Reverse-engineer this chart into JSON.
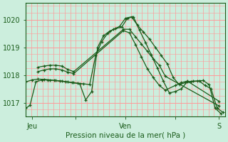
{
  "title": "",
  "xlabel": "Pression niveau de la mer( hPa )",
  "ylabel": "",
  "bg_color": "#cceedd",
  "grid_color_v": "#ff9999",
  "grid_color_h": "#ff9999",
  "line_color": "#1a5c1a",
  "ylim": [
    1016.5,
    1020.6
  ],
  "yticks": [
    1017,
    1018,
    1019,
    1020
  ],
  "xtick_labels": [
    "Jeu",
    "",
    "Ven",
    "",
    "S"
  ],
  "xtick_pos": [
    0.03,
    0.25,
    0.5,
    0.75,
    0.97
  ],
  "num_vlines": 36,
  "num_hlines_minor": 3,
  "lines": [
    {
      "x": [
        0.0,
        0.02,
        0.05,
        0.08,
        0.11,
        0.14,
        0.17,
        0.2,
        0.23,
        0.26,
        0.29,
        0.32,
        0.35,
        0.38,
        0.41,
        0.44,
        0.47,
        0.5,
        0.53,
        0.56,
        0.59,
        0.62,
        0.65,
        0.68,
        0.71,
        0.74,
        0.77,
        0.8,
        0.83,
        0.86,
        0.89,
        0.92,
        0.95,
        0.98
      ],
      "y": [
        1016.8,
        1016.9,
        1017.75,
        1017.82,
        1017.82,
        1017.8,
        1017.78,
        1017.75,
        1017.72,
        1017.7,
        1017.68,
        1017.65,
        1018.7,
        1019.2,
        1019.5,
        1019.65,
        1019.75,
        1020.05,
        1020.1,
        1019.8,
        1019.55,
        1019.3,
        1019.0,
        1018.7,
        1018.4,
        1017.9,
        1017.65,
        1017.72,
        1017.75,
        1017.78,
        1017.8,
        1017.65,
        1016.8,
        1016.6
      ]
    },
    {
      "x": [
        0.0,
        0.03,
        0.06,
        0.09,
        0.12,
        0.15,
        0.18,
        0.21,
        0.24,
        0.27,
        0.3,
        0.33,
        0.36,
        0.39,
        0.42,
        0.45,
        0.48,
        0.51,
        0.54,
        0.57,
        0.6,
        0.63,
        0.66,
        0.69,
        0.72,
        0.75,
        0.78,
        0.81,
        0.84,
        0.87,
        0.9,
        0.93,
        0.96,
        0.99
      ],
      "y": [
        1017.75,
        1017.82,
        1017.85,
        1017.84,
        1017.82,
        1017.8,
        1017.78,
        1017.75,
        1017.72,
        1017.68,
        1017.1,
        1017.4,
        1019.0,
        1019.42,
        1019.58,
        1019.68,
        1019.72,
        1020.05,
        1020.1,
        1019.62,
        1019.18,
        1018.72,
        1018.25,
        1017.78,
        1017.35,
        1017.4,
        1017.5,
        1017.75,
        1017.78,
        1017.78,
        1017.62,
        1017.5,
        1016.8,
        1016.65
      ]
    },
    {
      "x": [
        0.06,
        0.09,
        0.12,
        0.15,
        0.18,
        0.21,
        0.24,
        0.49,
        0.52,
        0.55,
        0.58,
        0.61,
        0.64,
        0.67,
        0.7,
        0.97
      ],
      "y": [
        1018.28,
        1018.32,
        1018.35,
        1018.35,
        1018.32,
        1018.2,
        1018.12,
        1019.65,
        1019.65,
        1019.38,
        1019.12,
        1018.85,
        1018.58,
        1018.35,
        1017.95,
        1016.88
      ]
    },
    {
      "x": [
        0.06,
        0.09,
        0.12,
        0.15,
        0.18,
        0.21,
        0.24,
        0.49,
        0.52,
        0.55,
        0.58,
        0.61,
        0.64,
        0.67,
        0.7,
        0.75,
        0.78,
        0.81,
        0.97
      ],
      "y": [
        1018.12,
        1018.18,
        1018.22,
        1018.22,
        1018.18,
        1018.1,
        1018.05,
        1019.6,
        1019.52,
        1019.1,
        1018.65,
        1018.22,
        1017.9,
        1017.62,
        1017.45,
        1017.62,
        1017.72,
        1017.78,
        1017.05
      ]
    }
  ]
}
